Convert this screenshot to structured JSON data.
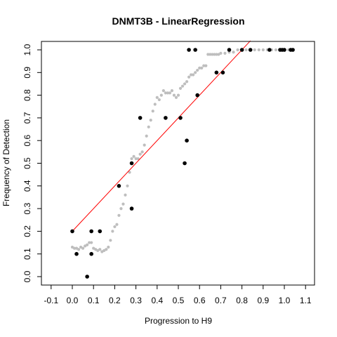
{
  "chart_data": {
    "type": "scatter",
    "title": "DNMT3B - LinearRegression",
    "xlabel": "Progression to H9",
    "ylabel": "Frequency of Detection",
    "xlim": [
      -0.1,
      1.1
    ],
    "ylim": [
      0.0,
      1.0
    ],
    "x_ticks": [
      "-0.1",
      "0.0",
      "0.1",
      "0.2",
      "0.3",
      "0.4",
      "0.5",
      "0.6",
      "0.7",
      "0.8",
      "0.9",
      "1.0",
      "1.1"
    ],
    "y_ticks": [
      "0.0",
      "0.1",
      "0.2",
      "0.3",
      "0.4",
      "0.5",
      "0.6",
      "0.7",
      "0.8",
      "0.9",
      "1.0"
    ],
    "grid": false,
    "colors": {
      "observed": "#000000",
      "smoothed": "#bebebe",
      "regression": "#ff0000"
    },
    "observed_points": [
      {
        "x": 0.0,
        "y": 0.2
      },
      {
        "x": 0.02,
        "y": 0.1
      },
      {
        "x": 0.07,
        "y": 0.0
      },
      {
        "x": 0.09,
        "y": 0.2
      },
      {
        "x": 0.09,
        "y": 0.1
      },
      {
        "x": 0.13,
        "y": 0.2
      },
      {
        "x": 0.22,
        "y": 0.4
      },
      {
        "x": 0.28,
        "y": 0.3
      },
      {
        "x": 0.28,
        "y": 0.5
      },
      {
        "x": 0.32,
        "y": 0.7
      },
      {
        "x": 0.44,
        "y": 0.7
      },
      {
        "x": 0.51,
        "y": 0.7
      },
      {
        "x": 0.53,
        "y": 0.5
      },
      {
        "x": 0.54,
        "y": 0.6
      },
      {
        "x": 0.55,
        "y": 1.0
      },
      {
        "x": 0.58,
        "y": 1.0
      },
      {
        "x": 0.59,
        "y": 0.8
      },
      {
        "x": 0.68,
        "y": 0.9
      },
      {
        "x": 0.71,
        "y": 0.9
      },
      {
        "x": 0.74,
        "y": 1.0
      },
      {
        "x": 0.8,
        "y": 1.0
      },
      {
        "x": 0.84,
        "y": 1.0
      },
      {
        "x": 0.93,
        "y": 1.0
      },
      {
        "x": 0.98,
        "y": 1.0
      },
      {
        "x": 0.99,
        "y": 1.0
      },
      {
        "x": 1.0,
        "y": 1.0
      },
      {
        "x": 1.03,
        "y": 1.0
      },
      {
        "x": 1.04,
        "y": 1.0
      }
    ],
    "smoothed_points": [
      [
        0.0,
        0.13
      ],
      [
        0.01,
        0.125
      ],
      [
        0.02,
        0.125
      ],
      [
        0.03,
        0.12
      ],
      [
        0.04,
        0.13
      ],
      [
        0.05,
        0.125
      ],
      [
        0.06,
        0.135
      ],
      [
        0.07,
        0.14
      ],
      [
        0.08,
        0.15
      ],
      [
        0.09,
        0.15
      ],
      [
        0.1,
        0.125
      ],
      [
        0.11,
        0.12
      ],
      [
        0.12,
        0.115
      ],
      [
        0.13,
        0.12
      ],
      [
        0.14,
        0.11
      ],
      [
        0.15,
        0.115
      ],
      [
        0.16,
        0.12
      ],
      [
        0.17,
        0.13
      ],
      [
        0.18,
        0.16
      ],
      [
        0.19,
        0.2
      ],
      [
        0.2,
        0.22
      ],
      [
        0.21,
        0.23
      ],
      [
        0.22,
        0.27
      ],
      [
        0.23,
        0.3
      ],
      [
        0.24,
        0.32
      ],
      [
        0.25,
        0.36
      ],
      [
        0.26,
        0.4
      ],
      [
        0.27,
        0.46
      ],
      [
        0.28,
        0.52
      ],
      [
        0.29,
        0.53
      ],
      [
        0.3,
        0.52
      ],
      [
        0.31,
        0.52
      ],
      [
        0.32,
        0.54
      ],
      [
        0.33,
        0.55
      ],
      [
        0.34,
        0.58
      ],
      [
        0.35,
        0.62
      ],
      [
        0.36,
        0.66
      ],
      [
        0.37,
        0.69
      ],
      [
        0.38,
        0.73
      ],
      [
        0.39,
        0.76
      ],
      [
        0.4,
        0.79
      ],
      [
        0.41,
        0.78
      ],
      [
        0.42,
        0.8
      ],
      [
        0.43,
        0.82
      ],
      [
        0.44,
        0.81
      ],
      [
        0.45,
        0.81
      ],
      [
        0.46,
        0.81
      ],
      [
        0.47,
        0.82
      ],
      [
        0.48,
        0.8
      ],
      [
        0.49,
        0.79
      ],
      [
        0.5,
        0.8
      ],
      [
        0.51,
        0.83
      ],
      [
        0.52,
        0.84
      ],
      [
        0.53,
        0.85
      ],
      [
        0.54,
        0.86
      ],
      [
        0.55,
        0.88
      ],
      [
        0.56,
        0.89
      ],
      [
        0.57,
        0.89
      ],
      [
        0.58,
        0.9
      ],
      [
        0.59,
        0.91
      ],
      [
        0.6,
        0.92
      ],
      [
        0.61,
        0.92
      ],
      [
        0.62,
        0.93
      ],
      [
        0.63,
        0.93
      ],
      [
        0.64,
        0.98
      ],
      [
        0.65,
        0.98
      ],
      [
        0.66,
        0.98
      ],
      [
        0.67,
        0.98
      ],
      [
        0.68,
        0.98
      ],
      [
        0.69,
        0.98
      ],
      [
        0.7,
        0.985
      ],
      [
        0.72,
        0.985
      ],
      [
        0.74,
        0.99
      ],
      [
        0.76,
        0.99
      ],
      [
        0.78,
        1.0
      ],
      [
        0.8,
        1.0
      ],
      [
        0.82,
        1.0
      ],
      [
        0.84,
        1.0
      ],
      [
        0.86,
        1.0
      ],
      [
        0.88,
        1.0
      ],
      [
        0.9,
        1.0
      ],
      [
        0.92,
        1.0
      ],
      [
        0.94,
        1.0
      ],
      [
        0.96,
        1.0
      ],
      [
        0.98,
        1.0
      ],
      [
        1.0,
        1.0
      ],
      [
        1.02,
        1.0
      ],
      [
        1.04,
        1.0
      ]
    ],
    "regression_line": {
      "x": [
        0.0,
        0.84
      ],
      "y": [
        0.2,
        1.04
      ]
    }
  }
}
